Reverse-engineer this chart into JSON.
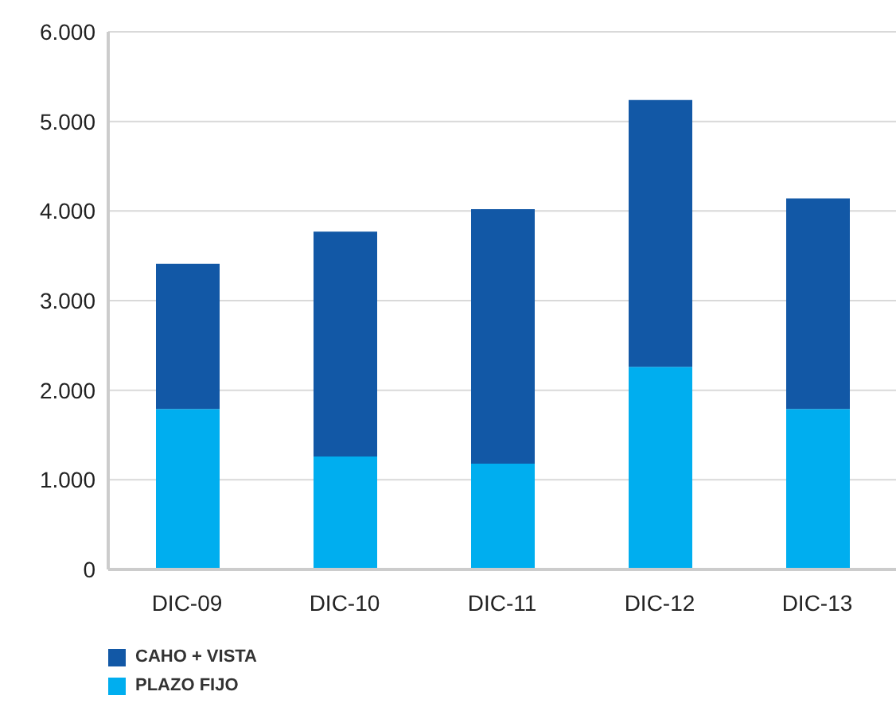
{
  "chart_data": {
    "type": "bar",
    "stacked": true,
    "categories": [
      "DIC-09",
      "DIC-10",
      "DIC-11",
      "DIC-12",
      "DIC-13"
    ],
    "series": [
      {
        "name": "PLAZO FIJO",
        "color": "#00aeef",
        "values": [
          1790,
          1260,
          1180,
          2260,
          1790
        ]
      },
      {
        "name": "CAHO + VISTA",
        "color": "#1258a6",
        "values": [
          1620,
          2510,
          2840,
          2980,
          2350
        ]
      }
    ],
    "ylim": [
      0,
      6000
    ],
    "yticks": [
      {
        "value": 0,
        "label": "0"
      },
      {
        "value": 1000,
        "label": "1.000"
      },
      {
        "value": 2000,
        "label": "2.000"
      },
      {
        "value": 3000,
        "label": "3.000"
      },
      {
        "value": 4000,
        "label": "4.000"
      },
      {
        "value": 5000,
        "label": "5.000"
      },
      {
        "value": 6000,
        "label": "6.000"
      }
    ],
    "grid": "y",
    "legend": "bottom left"
  }
}
